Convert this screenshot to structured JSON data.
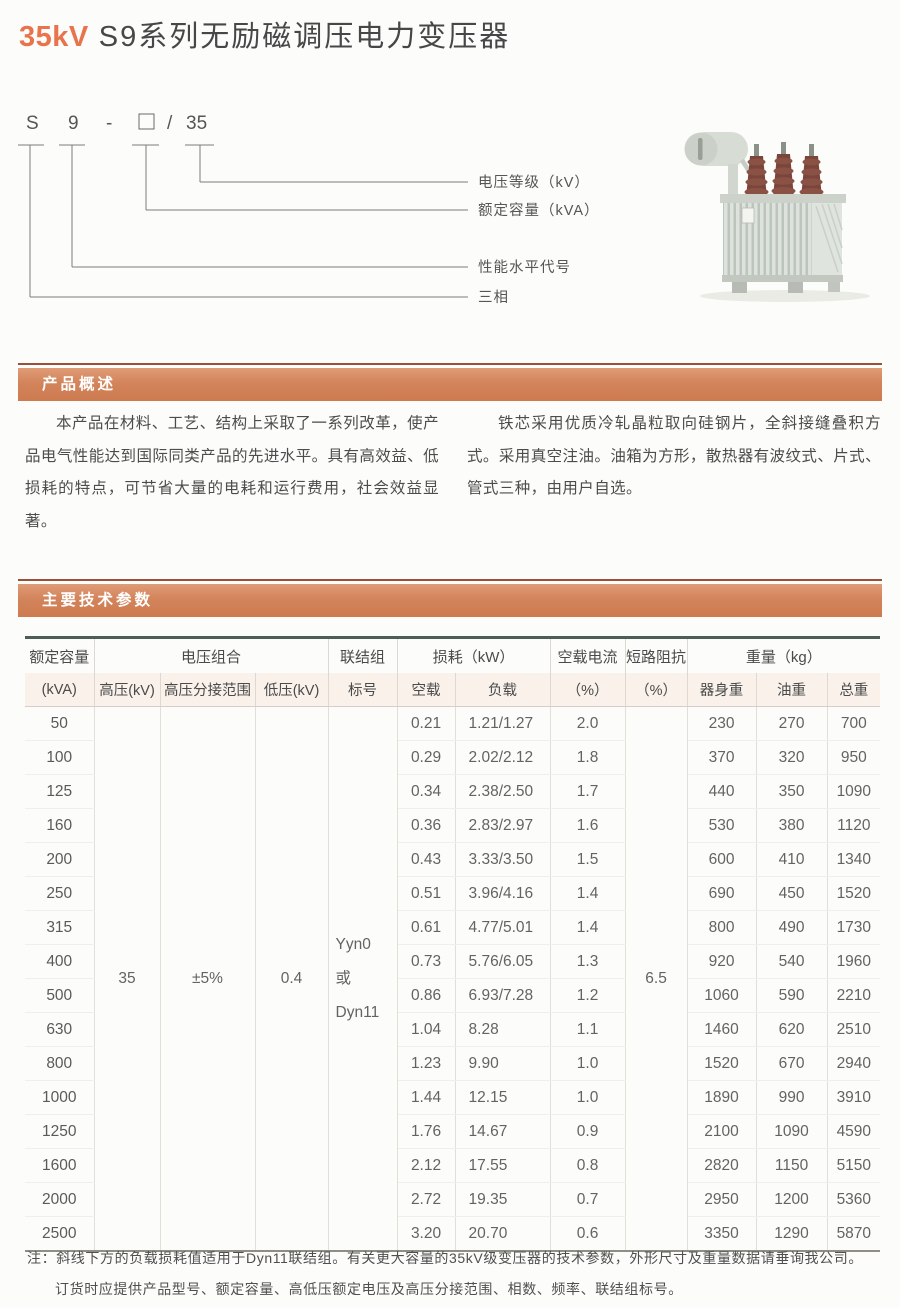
{
  "page_title": {
    "highlight": "35kV",
    "rest": " S9系列无励磁调压电力变压器"
  },
  "model_diagram": {
    "code": {
      "phase": "S",
      "performance": "9",
      "separator": "-",
      "placeholder_symbol": "□",
      "slash": "/",
      "voltage": "35"
    },
    "labels": [
      "电压等级（kV）",
      "额定容量（kVA）",
      "性能水平代号",
      "三相"
    ]
  },
  "overview": {
    "heading": "产品概述",
    "col_left": "本产品在材料、工艺、结构上采取了一系列改革，使产品电气性能达到国际同类产品的先进水平。具有高效益、低损耗的特点，可节省大量的电耗和运行费用，社会效益显著。",
    "col_right": "铁芯采用优质冷轧晶粒取向硅钢片，全斜接缝叠积方式。采用真空注油。油箱为方形，散热器有波纹式、片式、管式三种，由用户自选。"
  },
  "parameters": {
    "heading": "主要技术参数",
    "table": {
      "header": {
        "capacity": "额定容量",
        "capacity_unit": "(kVA)",
        "voltage_combo": "电压组合",
        "hv": "高压(kV)",
        "tap_range": "高压分接范围",
        "lv": "低压(kV)",
        "vector_group": "联结组",
        "vector_group_sub": "标号",
        "loss": "损耗（kW）",
        "no_load": "空载",
        "load": "负载",
        "no_load_current": "空载电流",
        "no_load_current_unit": "（%）",
        "impedance": "短路阻抗",
        "impedance_unit": "（%）",
        "weight": "重量（kg）",
        "body_weight": "器身重",
        "oil_weight": "油重",
        "total_weight": "总重"
      },
      "merged": {
        "hv_kv": "35",
        "tap_range": "±5%",
        "lv_kv": "0.4",
        "vector_group_lines": [
          "Yyn0",
          "或",
          "Dyn11"
        ],
        "impedance": "6.5"
      },
      "rows": [
        {
          "capacity": "50",
          "no_load": "0.21",
          "load": "1.21/1.27",
          "current": "2.0",
          "body_weight": "230",
          "oil_weight": "270",
          "total_weight": "700"
        },
        {
          "capacity": "100",
          "no_load": "0.29",
          "load": "2.02/2.12",
          "current": "1.8",
          "body_weight": "370",
          "oil_weight": "320",
          "total_weight": "950"
        },
        {
          "capacity": "125",
          "no_load": "0.34",
          "load": "2.38/2.50",
          "current": "1.7",
          "body_weight": "440",
          "oil_weight": "350",
          "total_weight": "1090"
        },
        {
          "capacity": "160",
          "no_load": "0.36",
          "load": "2.83/2.97",
          "current": "1.6",
          "body_weight": "530",
          "oil_weight": "380",
          "total_weight": "1120"
        },
        {
          "capacity": "200",
          "no_load": "0.43",
          "load": "3.33/3.50",
          "current": "1.5",
          "body_weight": "600",
          "oil_weight": "410",
          "total_weight": "1340"
        },
        {
          "capacity": "250",
          "no_load": "0.51",
          "load": "3.96/4.16",
          "current": "1.4",
          "body_weight": "690",
          "oil_weight": "450",
          "total_weight": "1520"
        },
        {
          "capacity": "315",
          "no_load": "0.61",
          "load": "4.77/5.01",
          "current": "1.4",
          "body_weight": "800",
          "oil_weight": "490",
          "total_weight": "1730"
        },
        {
          "capacity": "400",
          "no_load": "0.73",
          "load": "5.76/6.05",
          "current": "1.3",
          "body_weight": "920",
          "oil_weight": "540",
          "total_weight": "1960"
        },
        {
          "capacity": "500",
          "no_load": "0.86",
          "load": "6.93/7.28",
          "current": "1.2",
          "body_weight": "1060",
          "oil_weight": "590",
          "total_weight": "2210"
        },
        {
          "capacity": "630",
          "no_load": "1.04",
          "load": "8.28",
          "current": "1.1",
          "body_weight": "1460",
          "oil_weight": "620",
          "total_weight": "2510"
        },
        {
          "capacity": "800",
          "no_load": "1.23",
          "load": "9.90",
          "current": "1.0",
          "body_weight": "1520",
          "oil_weight": "670",
          "total_weight": "2940"
        },
        {
          "capacity": "1000",
          "no_load": "1.44",
          "load": "12.15",
          "current": "1.0",
          "body_weight": "1890",
          "oil_weight": "990",
          "total_weight": "3910"
        },
        {
          "capacity": "1250",
          "no_load": "1.76",
          "load": "14.67",
          "current": "0.9",
          "body_weight": "2100",
          "oil_weight": "1090",
          "total_weight": "4590"
        },
        {
          "capacity": "1600",
          "no_load": "2.12",
          "load": "17.55",
          "current": "0.8",
          "body_weight": "2820",
          "oil_weight": "1150",
          "total_weight": "5150"
        },
        {
          "capacity": "2000",
          "no_load": "2.72",
          "load": "19.35",
          "current": "0.7",
          "body_weight": "2950",
          "oil_weight": "1200",
          "total_weight": "5360"
        },
        {
          "capacity": "2500",
          "no_load": "3.20",
          "load": "20.70",
          "current": "0.6",
          "body_weight": "3350",
          "oil_weight": "1290",
          "total_weight": "5870"
        }
      ]
    }
  },
  "notes": {
    "prefix": "注：",
    "line1": "斜线下方的负载损耗值适用于Dyn11联结组。有关更大容量的35kV级变压器的技术参数，外形尺寸及重量数据请垂询我公司。",
    "line2": "订货时应提供产品型号、额定容量、高低压额定电压及高压分接范围、相数、频率、联结组标号。"
  },
  "colors": {
    "accent_orange": "#d3845b",
    "title_orange": "#e8744b",
    "rule_maroon": "#9b4f39",
    "table_top_border": "#4e5d55"
  }
}
